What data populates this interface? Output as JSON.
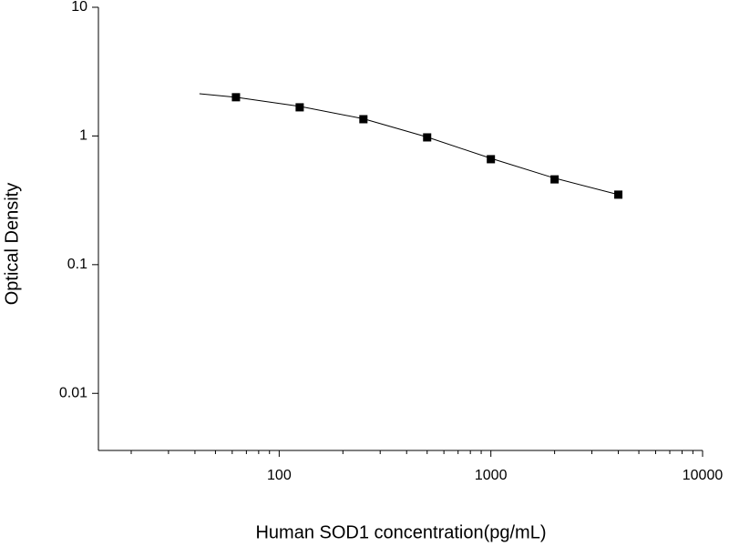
{
  "chart_data": {
    "type": "scatter",
    "x_label": "Human SOD1 concentration(pg/mL)",
    "y_label": "Optical Density",
    "x": [
      62.5,
      125,
      250,
      500,
      1000,
      2000,
      4000
    ],
    "values": [
      2.0,
      1.67,
      1.35,
      0.975,
      0.66,
      0.46,
      0.35
    ],
    "color": "#000000",
    "fit": {
      "x": [
        42,
        62.5,
        125,
        250,
        500,
        1000,
        2000,
        4000
      ],
      "values": [
        2.13,
        2.0,
        1.7,
        1.36,
        0.98,
        0.67,
        0.47,
        0.35
      ]
    },
    "x_log": true,
    "y_log": true,
    "xlim": [
      14,
      10000
    ],
    "ylim": [
      0.0036,
      10
    ],
    "xticks": [
      100,
      1000,
      10000
    ],
    "xminorticks": [
      20,
      30,
      40,
      50,
      60,
      70,
      80,
      90,
      200,
      300,
      400,
      500,
      600,
      700,
      800,
      900,
      2000,
      3000,
      4000,
      5000,
      6000,
      7000,
      8000,
      9000
    ],
    "yticks": [
      0.01,
      0.1,
      1,
      10
    ]
  }
}
